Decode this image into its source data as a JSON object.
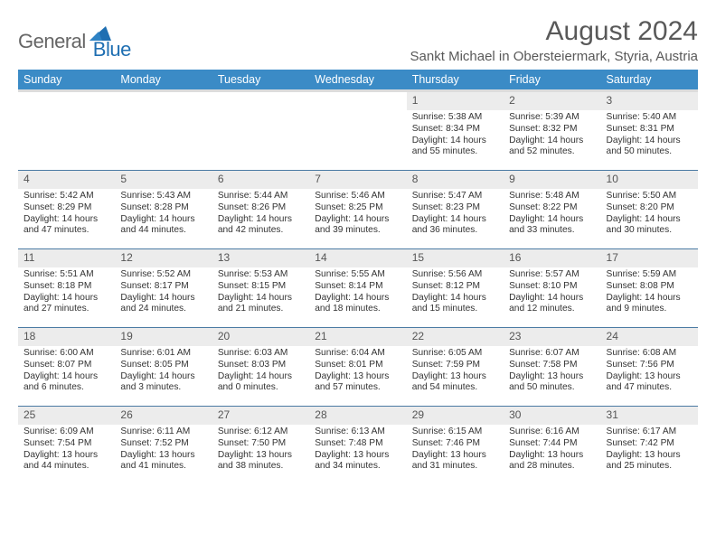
{
  "brand": {
    "name1": "General",
    "name2": "Blue"
  },
  "title": "August 2024",
  "location": "Sankt Michael in Obersteiermark, Styria, Austria",
  "colors": {
    "header_bg": "#3b8bc6",
    "header_text": "#ffffff",
    "daynum_bg": "#ececec",
    "week_border": "#4a7aa3",
    "text": "#333333",
    "title_text": "#595959",
    "brand_grey": "#666666",
    "brand_blue": "#1f6fb2",
    "logo_fill": "#1f6fb2"
  },
  "typography": {
    "title_fontsize": 30,
    "location_fontsize": 15,
    "dow_fontsize": 12.5,
    "daynum_fontsize": 12,
    "body_fontsize": 10.2
  },
  "dow": [
    "Sunday",
    "Monday",
    "Tuesday",
    "Wednesday",
    "Thursday",
    "Friday",
    "Saturday"
  ],
  "labels": {
    "sunrise": "Sunrise:",
    "sunset": "Sunset:",
    "daylight": "Daylight:"
  },
  "weeks": [
    [
      null,
      null,
      null,
      null,
      {
        "n": "1",
        "sr": "5:38 AM",
        "ss": "8:34 PM",
        "dl": "14 hours and 55 minutes."
      },
      {
        "n": "2",
        "sr": "5:39 AM",
        "ss": "8:32 PM",
        "dl": "14 hours and 52 minutes."
      },
      {
        "n": "3",
        "sr": "5:40 AM",
        "ss": "8:31 PM",
        "dl": "14 hours and 50 minutes."
      }
    ],
    [
      {
        "n": "4",
        "sr": "5:42 AM",
        "ss": "8:29 PM",
        "dl": "14 hours and 47 minutes."
      },
      {
        "n": "5",
        "sr": "5:43 AM",
        "ss": "8:28 PM",
        "dl": "14 hours and 44 minutes."
      },
      {
        "n": "6",
        "sr": "5:44 AM",
        "ss": "8:26 PM",
        "dl": "14 hours and 42 minutes."
      },
      {
        "n": "7",
        "sr": "5:46 AM",
        "ss": "8:25 PM",
        "dl": "14 hours and 39 minutes."
      },
      {
        "n": "8",
        "sr": "5:47 AM",
        "ss": "8:23 PM",
        "dl": "14 hours and 36 minutes."
      },
      {
        "n": "9",
        "sr": "5:48 AM",
        "ss": "8:22 PM",
        "dl": "14 hours and 33 minutes."
      },
      {
        "n": "10",
        "sr": "5:50 AM",
        "ss": "8:20 PM",
        "dl": "14 hours and 30 minutes."
      }
    ],
    [
      {
        "n": "11",
        "sr": "5:51 AM",
        "ss": "8:18 PM",
        "dl": "14 hours and 27 minutes."
      },
      {
        "n": "12",
        "sr": "5:52 AM",
        "ss": "8:17 PM",
        "dl": "14 hours and 24 minutes."
      },
      {
        "n": "13",
        "sr": "5:53 AM",
        "ss": "8:15 PM",
        "dl": "14 hours and 21 minutes."
      },
      {
        "n": "14",
        "sr": "5:55 AM",
        "ss": "8:14 PM",
        "dl": "14 hours and 18 minutes."
      },
      {
        "n": "15",
        "sr": "5:56 AM",
        "ss": "8:12 PM",
        "dl": "14 hours and 15 minutes."
      },
      {
        "n": "16",
        "sr": "5:57 AM",
        "ss": "8:10 PM",
        "dl": "14 hours and 12 minutes."
      },
      {
        "n": "17",
        "sr": "5:59 AM",
        "ss": "8:08 PM",
        "dl": "14 hours and 9 minutes."
      }
    ],
    [
      {
        "n": "18",
        "sr": "6:00 AM",
        "ss": "8:07 PM",
        "dl": "14 hours and 6 minutes."
      },
      {
        "n": "19",
        "sr": "6:01 AM",
        "ss": "8:05 PM",
        "dl": "14 hours and 3 minutes."
      },
      {
        "n": "20",
        "sr": "6:03 AM",
        "ss": "8:03 PM",
        "dl": "14 hours and 0 minutes."
      },
      {
        "n": "21",
        "sr": "6:04 AM",
        "ss": "8:01 PM",
        "dl": "13 hours and 57 minutes."
      },
      {
        "n": "22",
        "sr": "6:05 AM",
        "ss": "7:59 PM",
        "dl": "13 hours and 54 minutes."
      },
      {
        "n": "23",
        "sr": "6:07 AM",
        "ss": "7:58 PM",
        "dl": "13 hours and 50 minutes."
      },
      {
        "n": "24",
        "sr": "6:08 AM",
        "ss": "7:56 PM",
        "dl": "13 hours and 47 minutes."
      }
    ],
    [
      {
        "n": "25",
        "sr": "6:09 AM",
        "ss": "7:54 PM",
        "dl": "13 hours and 44 minutes."
      },
      {
        "n": "26",
        "sr": "6:11 AM",
        "ss": "7:52 PM",
        "dl": "13 hours and 41 minutes."
      },
      {
        "n": "27",
        "sr": "6:12 AM",
        "ss": "7:50 PM",
        "dl": "13 hours and 38 minutes."
      },
      {
        "n": "28",
        "sr": "6:13 AM",
        "ss": "7:48 PM",
        "dl": "13 hours and 34 minutes."
      },
      {
        "n": "29",
        "sr": "6:15 AM",
        "ss": "7:46 PM",
        "dl": "13 hours and 31 minutes."
      },
      {
        "n": "30",
        "sr": "6:16 AM",
        "ss": "7:44 PM",
        "dl": "13 hours and 28 minutes."
      },
      {
        "n": "31",
        "sr": "6:17 AM",
        "ss": "7:42 PM",
        "dl": "13 hours and 25 minutes."
      }
    ]
  ]
}
